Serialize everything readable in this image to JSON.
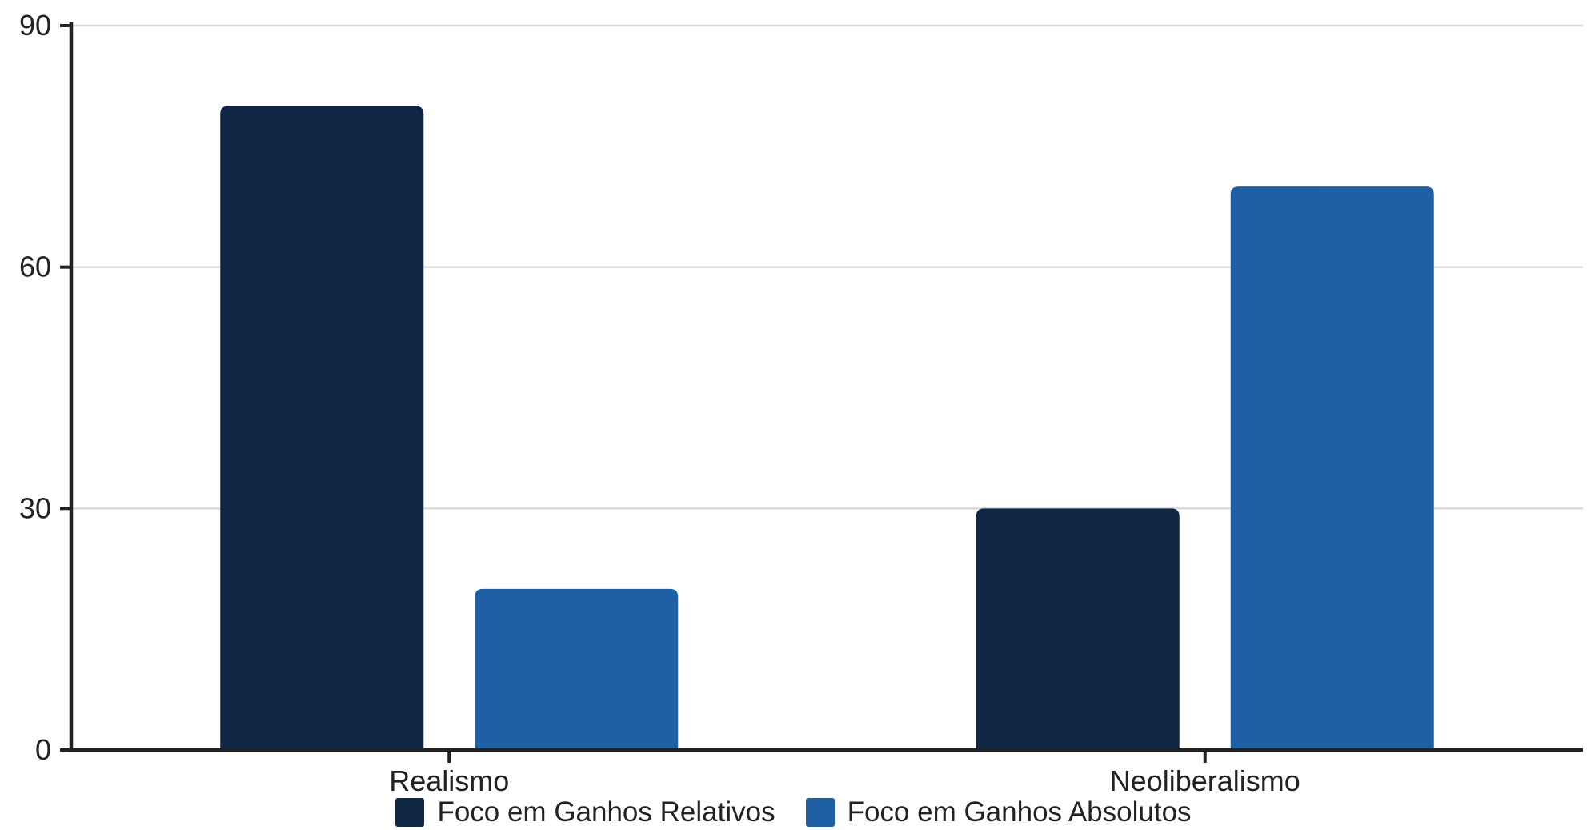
{
  "chart_data": {
    "type": "bar",
    "title": "",
    "xlabel": "",
    "ylabel": "",
    "categories": [
      "Realismo",
      "Neoliberalismo"
    ],
    "series": [
      {
        "name": "Foco em Ganhos Relativos",
        "values": [
          80,
          30
        ],
        "color": "#0f2744"
      },
      {
        "name": "Foco em Ganhos Absolutos",
        "values": [
          20,
          70
        ],
        "color": "#1f5fa3"
      }
    ],
    "ylim": [
      0,
      90
    ],
    "yticks": [
      0,
      30,
      60,
      90
    ],
    "grid": true,
    "legend_position": "bottom"
  },
  "legend": {
    "items": [
      {
        "label": "Foco em Ganhos Relativos",
        "color": "#0f2744"
      },
      {
        "label": "Foco em Ganhos Absolutos",
        "color": "#1f5fa3"
      }
    ]
  }
}
